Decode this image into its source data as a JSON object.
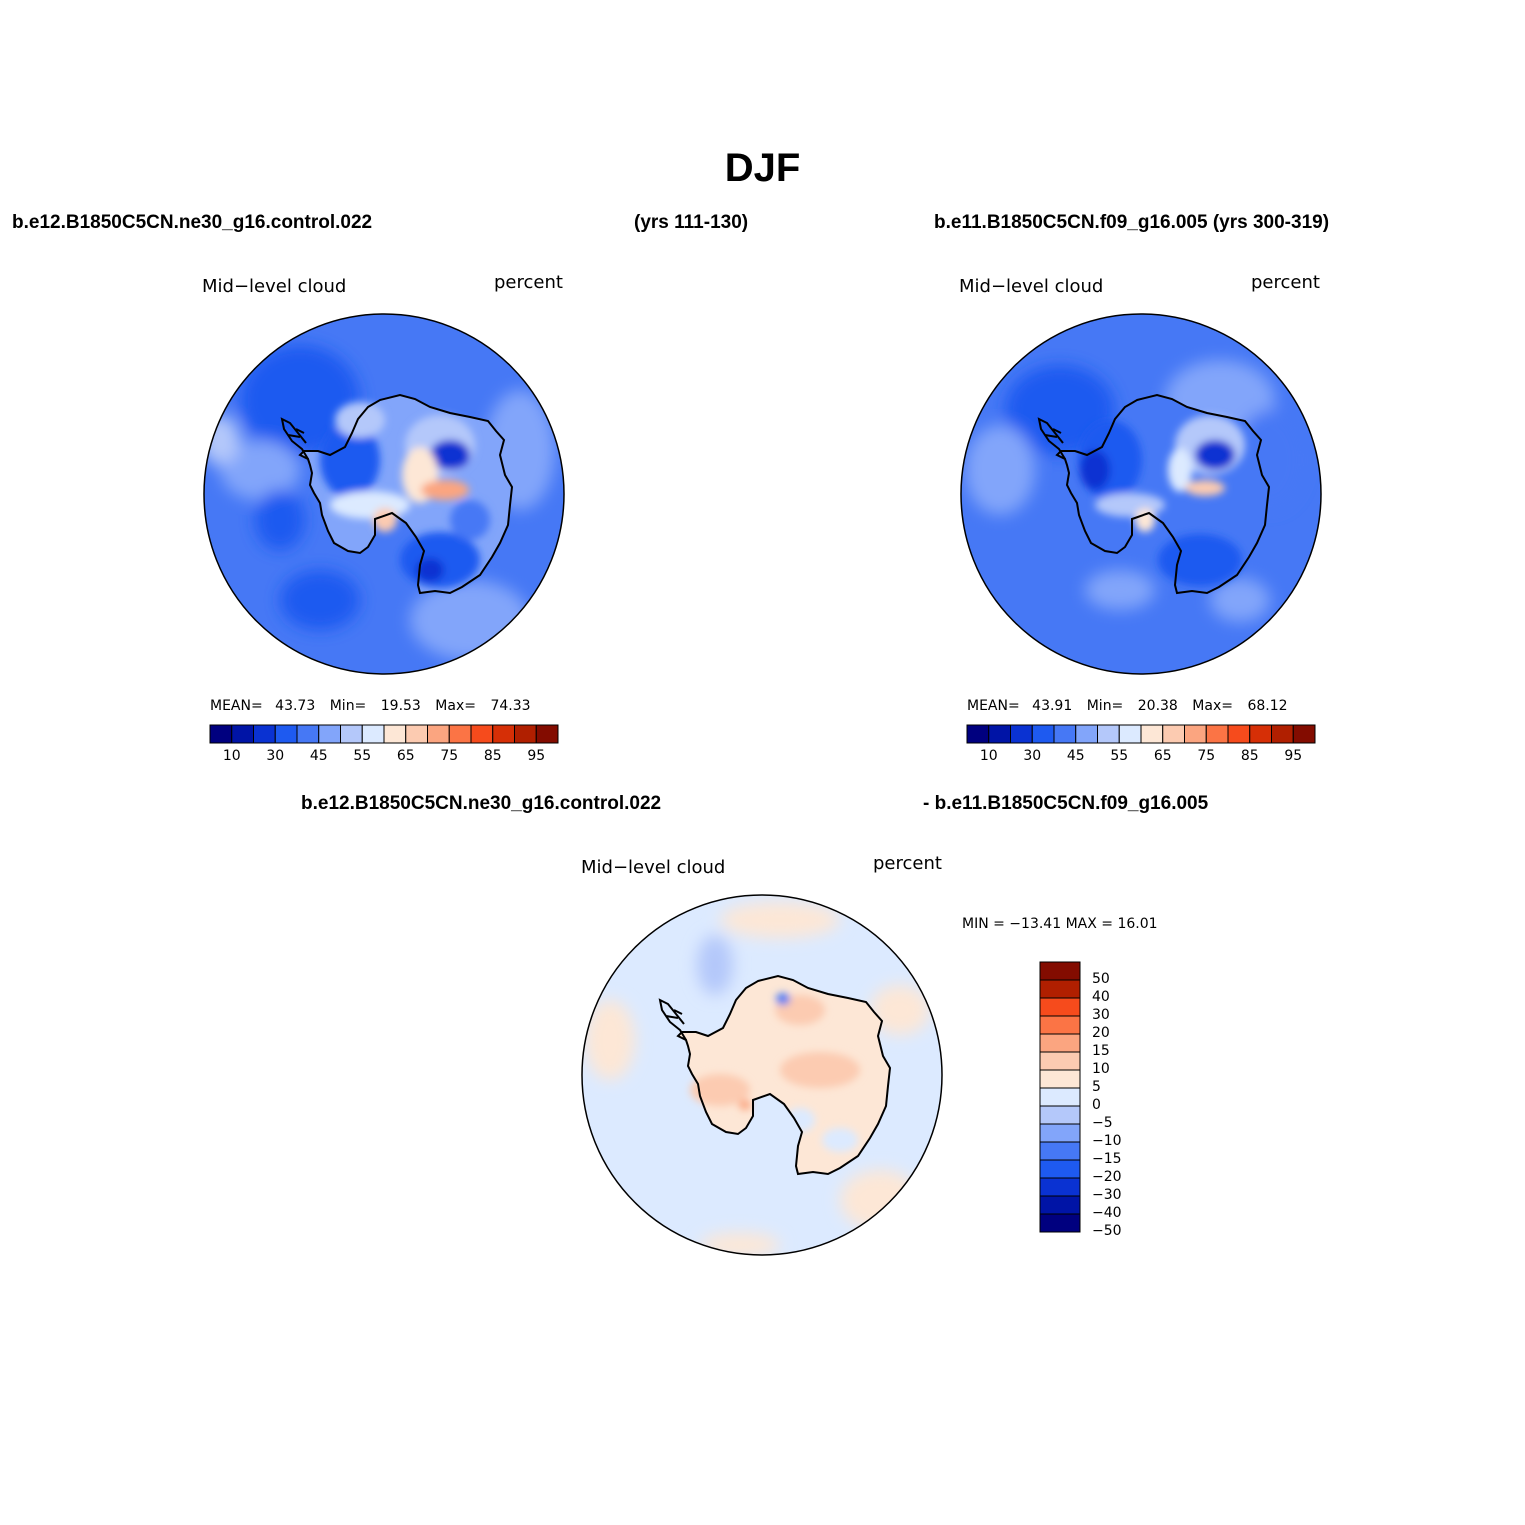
{
  "title": "DJF",
  "top_left_case": "b.e12.B1850C5CN.ne30_g16.control.022",
  "top_left_years": "(yrs 111-130)",
  "top_right_case": "b.e11.B1850C5CN.f09_g16.005 (yrs 300-319)",
  "diff_case_a": "b.e12.B1850C5CN.ne30_g16.control.022",
  "diff_case_b": "- b.e11.B1850C5CN.f09_g16.005",
  "panels": [
    {
      "variable": "Mid−level cloud",
      "units": "percent",
      "stats": {
        "mean_label": "MEAN=",
        "mean": "43.73",
        "min_label": "Min=",
        "min": "19.53",
        "max_label": "Max=",
        "max": "74.33"
      }
    },
    {
      "variable": "Mid−level cloud",
      "units": "percent",
      "stats": {
        "mean_label": "MEAN=",
        "mean": "43.91",
        "min_label": "Min=",
        "min": "20.38",
        "max_label": "Max=",
        "max": "68.12"
      }
    },
    {
      "variable": "Mid−level cloud",
      "units": "percent",
      "minmax": "MIN = −13.41 MAX =   16.01"
    }
  ],
  "abs_colorbar": {
    "colors": [
      "#00007f",
      "#0014a6",
      "#0a32d2",
      "#1e5af0",
      "#4678f5",
      "#82a5fa",
      "#b4c8fa",
      "#dceaff",
      "#fde7d6",
      "#fccbb1",
      "#fba580",
      "#fb7445",
      "#f64b1c",
      "#d62f06",
      "#b01f00",
      "#830c00"
    ],
    "labels": [
      "10",
      "30",
      "45",
      "55",
      "65",
      "75",
      "85",
      "95"
    ]
  },
  "diff_colorbar": {
    "colors": [
      "#830c00",
      "#b01f00",
      "#f64b1c",
      "#fb7445",
      "#fba580",
      "#fccbb1",
      "#fde7d6",
      "#dceaff",
      "#b4c8fa",
      "#82a5fa",
      "#4678f5",
      "#1e5af0",
      "#0a32d2",
      "#0014a6",
      "#00007f"
    ],
    "labels": [
      "50",
      "40",
      "30",
      "20",
      "15",
      "10",
      "5",
      "0",
      "−5",
      "−10",
      "−15",
      "−20",
      "−30",
      "−40",
      "−50"
    ]
  }
}
